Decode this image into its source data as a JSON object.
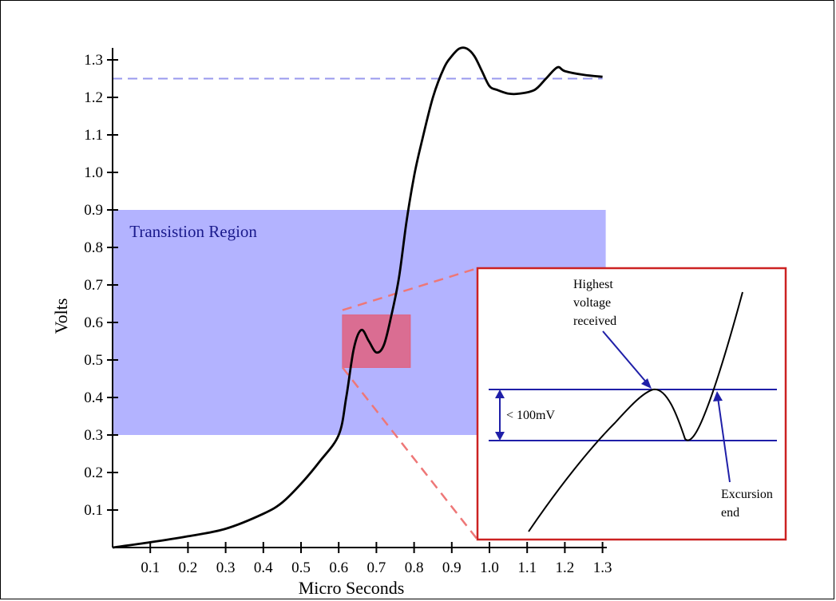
{
  "chart_data": {
    "type": "line",
    "xlabel": "Micro Seconds",
    "ylabel": "Volts",
    "xlim": [
      0,
      1.3
    ],
    "ylim": [
      0,
      1.35
    ],
    "x_ticks": [
      "0.1",
      "0.2",
      "0.3",
      "0.4",
      "0.5",
      "0.6",
      "0.7",
      "0.8",
      "0.9",
      "1.0",
      "1.1",
      "1.2",
      "1.3"
    ],
    "y_ticks": [
      "0.1",
      "0.2",
      "0.3",
      "0.4",
      "0.5",
      "0.6",
      "0.7",
      "0.8",
      "0.9",
      "1.0",
      "1.1",
      "1.2",
      "1.3"
    ],
    "grid": false,
    "series": [
      {
        "color": "#000000",
        "x": [
          0.0,
          0.1,
          0.2,
          0.3,
          0.4,
          0.45,
          0.5,
          0.55,
          0.6,
          0.62,
          0.64,
          0.66,
          0.68,
          0.7,
          0.72,
          0.74,
          0.76,
          0.78,
          0.8,
          0.82,
          0.85,
          0.88,
          0.9,
          0.92,
          0.94,
          0.96,
          0.98,
          1.0,
          1.02,
          1.05,
          1.08,
          1.12,
          1.15,
          1.18,
          1.2,
          1.25,
          1.3
        ],
        "y": [
          0.0,
          0.014,
          0.03,
          0.05,
          0.09,
          0.12,
          0.17,
          0.23,
          0.3,
          0.4,
          0.53,
          0.58,
          0.55,
          0.52,
          0.54,
          0.62,
          0.72,
          0.87,
          0.99,
          1.08,
          1.2,
          1.28,
          1.31,
          1.33,
          1.33,
          1.31,
          1.27,
          1.23,
          1.22,
          1.21,
          1.21,
          1.22,
          1.25,
          1.28,
          1.27,
          1.26,
          1.255
        ]
      }
    ],
    "reference_line": {
      "y": 1.25,
      "color": "#9999ee",
      "style": "dashed"
    },
    "transition_region": {
      "label": "Transistion Region",
      "x": [
        0,
        1.3
      ],
      "y": [
        0.3,
        0.9
      ],
      "color": "#8080ff"
    },
    "zoom_box": {
      "x": [
        0.61,
        0.79
      ],
      "y": [
        0.48,
        0.62
      ],
      "color": "#e06070"
    },
    "inset": {
      "annotations": {
        "highest": "Highest voltage received",
        "highest_lines": [
          "Highest",
          "voltage",
          "received"
        ],
        "range": "< 100mV",
        "excursion": "Excursion end",
        "excursion_lines": [
          "Excursion",
          "end"
        ]
      }
    }
  },
  "colors": {
    "curve": "#000000",
    "region_fill": "#8080ff",
    "region_text": "#1a1a8c",
    "zoom_fill": "#e0607f",
    "inset_border": "#cc2222",
    "inset_lines": "#1f1fa8",
    "dash": "#ee7777"
  }
}
